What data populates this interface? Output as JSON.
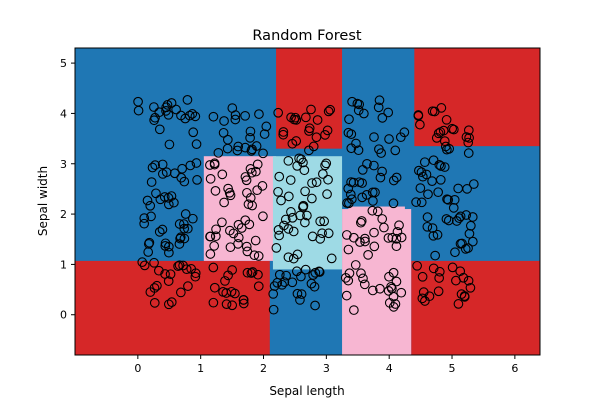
{
  "chart_data": {
    "type": "scatter",
    "title": "Random Forest",
    "xlabel": "Sepal length",
    "ylabel": "Sepal width",
    "xlim": [
      -1.0,
      6.4
    ],
    "ylim": [
      -0.8,
      5.3
    ],
    "x_ticks": [
      0,
      1,
      2,
      3,
      4,
      5,
      6
    ],
    "y_ticks": [
      0,
      1,
      2,
      3,
      4,
      5
    ],
    "grid": false,
    "legend": "none",
    "colors": {
      "region_blue": "#1f77b4",
      "region_red": "#d62728",
      "region_pink": "#f7b6d2",
      "region_cyan": "#9edae5",
      "point_edge": "#000000"
    },
    "decision_regions": [
      {
        "class": "blue",
        "x": [
          -1.0,
          6.4
        ],
        "y": [
          -0.8,
          5.3
        ]
      },
      {
        "class": "red",
        "x": [
          2.2,
          3.25
        ],
        "y": [
          3.3,
          5.3
        ]
      },
      {
        "class": "red",
        "x": [
          4.4,
          6.4
        ],
        "y": [
          3.35,
          5.3
        ]
      },
      {
        "class": "red",
        "x": [
          -1.0,
          2.1
        ],
        "y": [
          -0.8,
          1.07
        ]
      },
      {
        "class": "red",
        "x": [
          4.35,
          6.4
        ],
        "y": [
          -0.8,
          1.07
        ]
      },
      {
        "class": "pink",
        "x": [
          1.05,
          2.2
        ],
        "y": [
          1.07,
          3.15
        ]
      },
      {
        "class": "cyan",
        "x": [
          2.15,
          3.25
        ],
        "y": [
          0.9,
          3.15
        ]
      },
      {
        "class": "pink",
        "x": [
          3.25,
          4.35
        ],
        "y": [
          -0.8,
          2.1
        ]
      },
      {
        "class": "pink",
        "x": [
          3.35,
          4.25
        ],
        "y": [
          1.07,
          2.15
        ]
      }
    ],
    "scatter_clusters": [
      {
        "x": [
          0.05,
          0.95
        ],
        "y": [
          0.2,
          1.05
        ],
        "n": 22
      },
      {
        "x": [
          1.05,
          1.95
        ],
        "y": [
          0.15,
          1.0
        ],
        "n": 20
      },
      {
        "x": [
          2.15,
          2.95
        ],
        "y": [
          0.1,
          0.95
        ],
        "n": 22
      },
      {
        "x": [
          3.3,
          4.2
        ],
        "y": [
          0.05,
          1.0
        ],
        "n": 22
      },
      {
        "x": [
          4.4,
          5.4
        ],
        "y": [
          0.0,
          1.0
        ],
        "n": 20
      },
      {
        "x": [
          0.05,
          0.95
        ],
        "y": [
          1.2,
          2.05
        ],
        "n": 22
      },
      {
        "x": [
          1.1,
          2.0
        ],
        "y": [
          1.1,
          2.0
        ],
        "n": 22
      },
      {
        "x": [
          2.2,
          3.1
        ],
        "y": [
          1.1,
          2.05
        ],
        "n": 22
      },
      {
        "x": [
          3.3,
          4.2
        ],
        "y": [
          1.05,
          2.1
        ],
        "n": 22
      },
      {
        "x": [
          4.45,
          5.35
        ],
        "y": [
          1.15,
          2.15
        ],
        "n": 22
      },
      {
        "x": [
          0.05,
          0.95
        ],
        "y": [
          2.15,
          3.05
        ],
        "n": 22
      },
      {
        "x": [
          1.1,
          2.0
        ],
        "y": [
          2.15,
          3.05
        ],
        "n": 22
      },
      {
        "x": [
          2.2,
          3.05
        ],
        "y": [
          2.1,
          3.1
        ],
        "n": 22
      },
      {
        "x": [
          3.3,
          4.2
        ],
        "y": [
          2.2,
          3.05
        ],
        "n": 22
      },
      {
        "x": [
          4.4,
          5.35
        ],
        "y": [
          2.2,
          3.1
        ],
        "n": 22
      },
      {
        "x": [
          0.0,
          0.95
        ],
        "y": [
          3.35,
          4.3
        ],
        "n": 22
      },
      {
        "x": [
          1.2,
          2.05
        ],
        "y": [
          3.2,
          4.15
        ],
        "n": 22
      },
      {
        "x": [
          2.2,
          3.1
        ],
        "y": [
          3.1,
          4.1
        ],
        "n": 22
      },
      {
        "x": [
          3.35,
          4.25
        ],
        "y": [
          3.2,
          4.3
        ],
        "n": 22
      },
      {
        "x": [
          4.45,
          5.3
        ],
        "y": [
          3.2,
          4.15
        ],
        "n": 22
      }
    ]
  }
}
